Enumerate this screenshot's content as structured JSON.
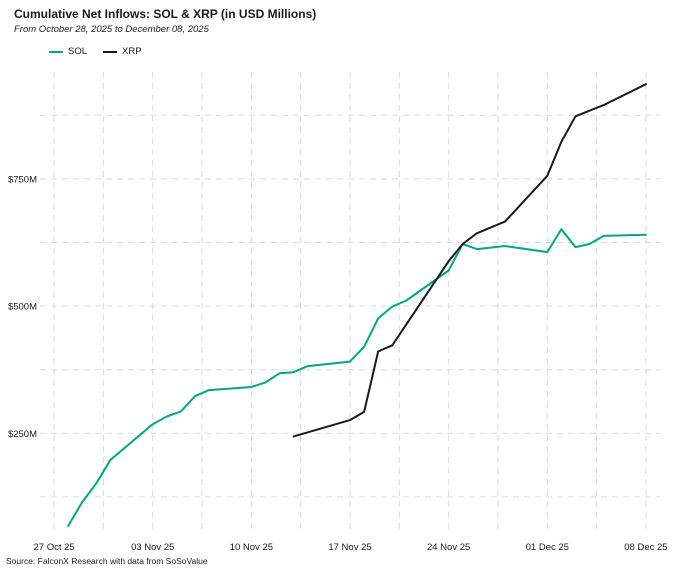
{
  "chart_data": {
    "type": "line",
    "title": "Cumulative Net Inflows: SOL & XRP (in USD Millions)",
    "subtitle": "From October 28, 2025 to December 08, 2025",
    "source": "Source: FalconX Research with data from SoSoValue",
    "xlabel": "",
    "ylabel": "",
    "x_ticks": [
      "27 Oct 25",
      "03 Nov 25",
      "10 Nov 25",
      "17 Nov 25",
      "24 Nov 25",
      "01 Dec 25",
      "08 Dec 25"
    ],
    "y_ticks": [
      {
        "value": 250,
        "label": "$250M"
      },
      {
        "value": 500,
        "label": "$500M"
      },
      {
        "value": 750,
        "label": "$750M"
      }
    ],
    "ylim": [
      60,
      960
    ],
    "xlim": [
      "2025-10-26",
      "2025-12-09"
    ],
    "grid": true,
    "legend_position": "top-left",
    "series": [
      {
        "name": "SOL",
        "color": "#00A881",
        "points": [
          [
            "2025-10-28",
            68
          ],
          [
            "2025-10-29",
            115
          ],
          [
            "2025-10-30",
            152
          ],
          [
            "2025-10-31",
            198
          ],
          [
            "2025-11-03",
            268
          ],
          [
            "2025-11-04",
            283
          ],
          [
            "2025-11-05",
            293
          ],
          [
            "2025-11-06",
            323
          ],
          [
            "2025-11-07",
            335
          ],
          [
            "2025-11-10",
            341
          ],
          [
            "2025-11-11",
            350
          ],
          [
            "2025-11-12",
            368
          ],
          [
            "2025-11-13",
            370
          ],
          [
            "2025-11-14",
            382
          ],
          [
            "2025-11-17",
            391
          ],
          [
            "2025-11-18",
            420
          ],
          [
            "2025-11-19",
            476
          ],
          [
            "2025-11-20",
            499
          ],
          [
            "2025-11-21",
            511
          ],
          [
            "2025-11-24",
            570
          ],
          [
            "2025-11-25",
            622
          ],
          [
            "2025-11-26",
            612
          ],
          [
            "2025-11-28",
            618
          ],
          [
            "2025-12-01",
            606
          ],
          [
            "2025-12-02",
            651
          ],
          [
            "2025-12-03",
            616
          ],
          [
            "2025-12-04",
            622
          ],
          [
            "2025-12-05",
            638
          ],
          [
            "2025-12-08",
            640
          ]
        ]
      },
      {
        "name": "XRP",
        "color": "#1a1a1a",
        "points": [
          [
            "2025-11-13",
            244
          ],
          [
            "2025-11-17",
            276
          ],
          [
            "2025-11-18",
            292
          ],
          [
            "2025-11-19",
            411
          ],
          [
            "2025-11-20",
            423
          ],
          [
            "2025-11-24",
            588
          ],
          [
            "2025-11-25",
            622
          ],
          [
            "2025-11-26",
            643
          ],
          [
            "2025-11-28",
            666
          ],
          [
            "2025-12-01",
            756
          ],
          [
            "2025-12-02",
            823
          ],
          [
            "2025-12-03",
            873
          ],
          [
            "2025-12-04",
            884
          ],
          [
            "2025-12-05",
            895
          ],
          [
            "2025-12-08",
            936
          ]
        ]
      }
    ]
  }
}
